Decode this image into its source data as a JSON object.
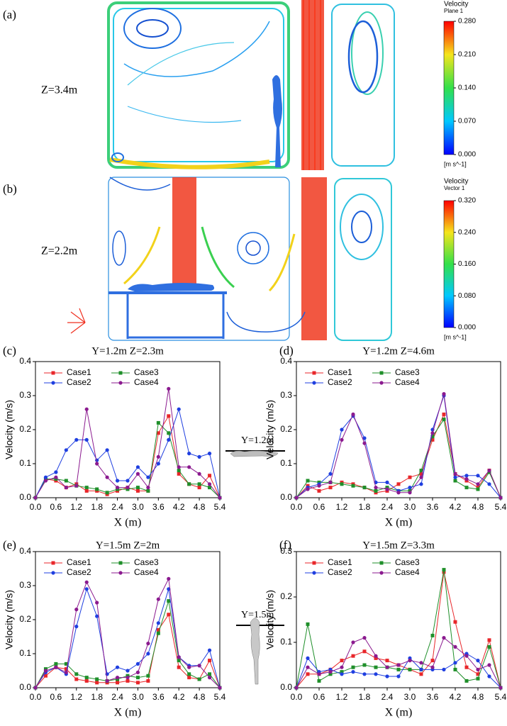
{
  "cfd_panels": [
    {
      "label": "(a)",
      "plane_label": "Z=3.4m",
      "colorbar": {
        "title": "Velocity",
        "subtitle": "Plane 1",
        "lim": [
          0,
          0.28
        ],
        "ticks": [
          {
            "value": 0,
            "label": "0.000"
          },
          {
            "value": 0.07,
            "label": "0.070"
          },
          {
            "value": 0.14,
            "label": "0.140"
          },
          {
            "value": 0.21,
            "label": "0.210"
          },
          {
            "value": 0.28,
            "label": "0.280"
          }
        ],
        "unit": "[m s^-1]"
      }
    },
    {
      "label": "(b)",
      "plane_label": "Z=2.2m",
      "colorbar": {
        "title": "Velocity",
        "subtitle": "Vector 1",
        "lim": [
          0,
          0.32
        ],
        "ticks": [
          {
            "value": 0,
            "label": "0.000"
          },
          {
            "value": 0.08,
            "label": "0.080"
          },
          {
            "value": 0.16,
            "label": "0.160"
          },
          {
            "value": 0.24,
            "label": "0.240"
          },
          {
            "value": 0.32,
            "label": "0.320"
          }
        ],
        "unit": "[m s^-1]"
      }
    }
  ],
  "insets": [
    {
      "label": "Y=1.2m"
    },
    {
      "label": "Y=1.5m"
    }
  ],
  "chart_data": [
    {
      "type": "line",
      "panel_label": "(c)",
      "title": "Y=1.2m Z=2.3m",
      "x_label": "X (m)",
      "y_label": "Velocity (m/s)",
      "x": [
        0,
        0.3,
        0.6,
        0.9,
        1.2,
        1.5,
        1.8,
        2.1,
        2.4,
        2.7,
        3.0,
        3.3,
        3.6,
        3.9,
        4.2,
        4.5,
        4.8,
        5.1,
        5.4
      ],
      "xlim": [
        0,
        5.4
      ],
      "xticks": [
        {
          "value": 0,
          "label": "0.0"
        },
        0.6,
        1.2,
        1.8,
        2.4,
        {
          "value": 3,
          "label": "3.0"
        },
        3.6,
        4.2,
        4.8,
        5.4
      ],
      "ylim": [
        0,
        0.4
      ],
      "yticks": [
        {
          "value": 0,
          "label": "0.0"
        },
        0.1,
        0.2,
        0.3,
        0.4
      ],
      "series": [
        {
          "name": "Case1",
          "color": "#e8262a",
          "marker": "square",
          "values": [
            0,
            0.055,
            0.05,
            0.03,
            0.04,
            0.02,
            0.02,
            0.01,
            0.02,
            0.03,
            0.02,
            0.02,
            0.19,
            0.24,
            0.07,
            0.04,
            0.03,
            0.065,
            0
          ]
        },
        {
          "name": "Case3",
          "color": "#1f8f2a",
          "marker": "square",
          "values": [
            0,
            0.055,
            0.055,
            0.05,
            0.035,
            0.03,
            0.025,
            0.015,
            0.025,
            0.025,
            0.03,
            0.02,
            0.22,
            0.19,
            0.08,
            0.04,
            0.04,
            0.03,
            0
          ]
        },
        {
          "name": "Case2",
          "color": "#1f3fe0",
          "marker": "circle",
          "values": [
            0,
            0.06,
            0.075,
            0.14,
            0.17,
            0.17,
            0.11,
            0.14,
            0.05,
            0.05,
            0.09,
            0.06,
            0.1,
            0.17,
            0.26,
            0.13,
            0.12,
            0.13,
            0
          ]
        },
        {
          "name": "Case4",
          "color": "#8b1a8f",
          "marker": "circle",
          "values": [
            0,
            0.05,
            0.06,
            0.03,
            0.035,
            0.26,
            0.1,
            0.06,
            0.03,
            0.03,
            0.07,
            0.03,
            0.12,
            0.32,
            0.09,
            0.09,
            0.07,
            0.04,
            0
          ]
        }
      ]
    },
    {
      "type": "line",
      "panel_label": "(d)",
      "title": "Y=1.2m Z=4.6m",
      "x_label": "X (m)",
      "y_label": "Velocity (m/s)",
      "x": [
        0,
        0.3,
        0.6,
        0.9,
        1.2,
        1.5,
        1.8,
        2.1,
        2.4,
        2.7,
        3.0,
        3.3,
        3.6,
        3.9,
        4.2,
        4.5,
        4.8,
        5.1,
        5.4
      ],
      "xlim": [
        0,
        5.4
      ],
      "xticks": [
        {
          "value": 0,
          "label": "0.0"
        },
        0.6,
        1.2,
        1.8,
        2.4,
        {
          "value": 3,
          "label": "3.0"
        },
        3.6,
        4.2,
        4.8,
        5.4
      ],
      "ylim": [
        0,
        0.4
      ],
      "yticks": [
        {
          "value": 0,
          "label": "0.0"
        },
        0.1,
        0.2,
        0.3,
        0.4
      ],
      "series": [
        {
          "name": "Case1",
          "color": "#e8262a",
          "marker": "square",
          "values": [
            0,
            0.035,
            0.02,
            0.03,
            0.045,
            0.04,
            0.03,
            0.015,
            0.02,
            0.04,
            0.06,
            0.07,
            0.17,
            0.245,
            0.07,
            0.05,
            0.03,
            0.08,
            0
          ]
        },
        {
          "name": "Case3",
          "color": "#1f8f2a",
          "marker": "square",
          "values": [
            0,
            0.05,
            0.045,
            0.045,
            0.04,
            0.035,
            0.03,
            0.02,
            0.03,
            0.02,
            0.02,
            0.08,
            0.18,
            0.23,
            0.05,
            0.03,
            0.025,
            0.075,
            0
          ]
        },
        {
          "name": "Case2",
          "color": "#1f3fe0",
          "marker": "circle",
          "values": [
            0,
            0.03,
            0.04,
            0.07,
            0.2,
            0.24,
            0.175,
            0.045,
            0.045,
            0.02,
            0.03,
            0.04,
            0.2,
            0.3,
            0.06,
            0.065,
            0.065,
            0.04,
            0
          ]
        },
        {
          "name": "Case4",
          "color": "#8b1a8f",
          "marker": "circle",
          "values": [
            0,
            0.025,
            0.035,
            0.045,
            0.17,
            0.245,
            0.16,
            0.03,
            0.025,
            0.015,
            0.015,
            0.06,
            0.19,
            0.305,
            0.07,
            0.055,
            0.04,
            0.08,
            0
          ]
        }
      ]
    },
    {
      "type": "line",
      "panel_label": "(e)",
      "title": "Y=1.5m Z=2m",
      "x_label": "X (m)",
      "y_label": "Velocity (m/s)",
      "x": [
        0,
        0.3,
        0.6,
        0.9,
        1.2,
        1.5,
        1.8,
        2.1,
        2.4,
        2.7,
        3.0,
        3.3,
        3.6,
        3.9,
        4.2,
        4.5,
        4.8,
        5.1,
        5.4
      ],
      "xlim": [
        0,
        5.4
      ],
      "xticks": [
        {
          "value": 0,
          "label": "0.0"
        },
        0.6,
        1.2,
        1.8,
        2.4,
        {
          "value": 3,
          "label": "3.0"
        },
        3.6,
        4.2,
        4.8,
        5.4
      ],
      "ylim": [
        0,
        0.4
      ],
      "yticks": [
        {
          "value": 0,
          "label": "0.0"
        },
        0.1,
        0.2,
        0.3,
        0.4
      ],
      "series": [
        {
          "name": "Case1",
          "color": "#e8262a",
          "marker": "square",
          "values": [
            0,
            0.035,
            0.06,
            0.055,
            0.025,
            0.02,
            0.015,
            0.015,
            0.015,
            0.02,
            0.015,
            0.02,
            0.17,
            0.215,
            0.06,
            0.03,
            0.025,
            0.08,
            0
          ]
        },
        {
          "name": "Case3",
          "color": "#1f8f2a",
          "marker": "square",
          "values": [
            0,
            0.055,
            0.07,
            0.07,
            0.04,
            0.03,
            0.025,
            0.02,
            0.025,
            0.035,
            0.03,
            0.035,
            0.16,
            0.255,
            0.08,
            0.04,
            0.025,
            0.04,
            0
          ]
        },
        {
          "name": "Case2",
          "color": "#1f3fe0",
          "marker": "circle",
          "values": [
            0,
            0.045,
            0.06,
            0.04,
            0.18,
            0.29,
            0.21,
            0.04,
            0.06,
            0.05,
            0.07,
            0.1,
            0.19,
            0.29,
            0.09,
            0.065,
            0.065,
            0.11,
            0
          ]
        },
        {
          "name": "Case4",
          "color": "#8b1a8f",
          "marker": "circle",
          "values": [
            0,
            0.05,
            0.06,
            0.045,
            0.23,
            0.31,
            0.25,
            0.02,
            0.03,
            0.03,
            0.045,
            0.13,
            0.26,
            0.32,
            0.09,
            0.06,
            0.065,
            0.03,
            0
          ]
        }
      ]
    },
    {
      "type": "line",
      "panel_label": "(f)",
      "title": "Y=1.5m Z=3.3m",
      "x_label": "X (m)",
      "y_label": "Velocity (m/s)",
      "x": [
        0,
        0.3,
        0.6,
        0.9,
        1.2,
        1.5,
        1.8,
        2.1,
        2.4,
        2.7,
        3.0,
        3.3,
        3.6,
        3.9,
        4.2,
        4.5,
        4.8,
        5.1,
        5.4
      ],
      "xlim": [
        0,
        5.4
      ],
      "xticks": [
        {
          "value": 0,
          "label": "0.0"
        },
        0.6,
        1.2,
        1.8,
        2.4,
        {
          "value": 3,
          "label": "3.0"
        },
        3.6,
        4.2,
        4.8,
        5.4
      ],
      "ylim": [
        0,
        0.3
      ],
      "yticks": [
        {
          "value": 0,
          "label": "0.0"
        },
        0.1,
        0.2,
        0.3
      ],
      "series": [
        {
          "name": "Case1",
          "color": "#e8262a",
          "marker": "square",
          "values": [
            0,
            0.03,
            0.03,
            0.04,
            0.06,
            0.07,
            0.08,
            0.065,
            0.06,
            0.05,
            0.04,
            0.03,
            0.06,
            0.255,
            0.145,
            0.045,
            0.03,
            0.105,
            0
          ]
        },
        {
          "name": "Case3",
          "color": "#1f8f2a",
          "marker": "square",
          "values": [
            0,
            0.14,
            0.015,
            0.03,
            0.035,
            0.045,
            0.05,
            0.045,
            0.045,
            0.04,
            0.04,
            0.04,
            0.115,
            0.26,
            0.04,
            0.015,
            0.02,
            0.09,
            0
          ]
        },
        {
          "name": "Case2",
          "color": "#1f3fe0",
          "marker": "circle",
          "values": [
            0,
            0.065,
            0.035,
            0.04,
            0.03,
            0.035,
            0.03,
            0.03,
            0.025,
            0.025,
            0.065,
            0.04,
            0.04,
            0.04,
            0.055,
            0.075,
            0.06,
            0.025,
            0
          ]
        },
        {
          "name": "Case4",
          "color": "#8b1a8f",
          "marker": "circle",
          "values": [
            0,
            0.045,
            0.03,
            0.035,
            0.045,
            0.1,
            0.11,
            0.07,
            0.045,
            0.05,
            0.06,
            0.055,
            0.045,
            0.11,
            0.09,
            0.07,
            0.04,
            0.05,
            0
          ]
        }
      ]
    }
  ]
}
